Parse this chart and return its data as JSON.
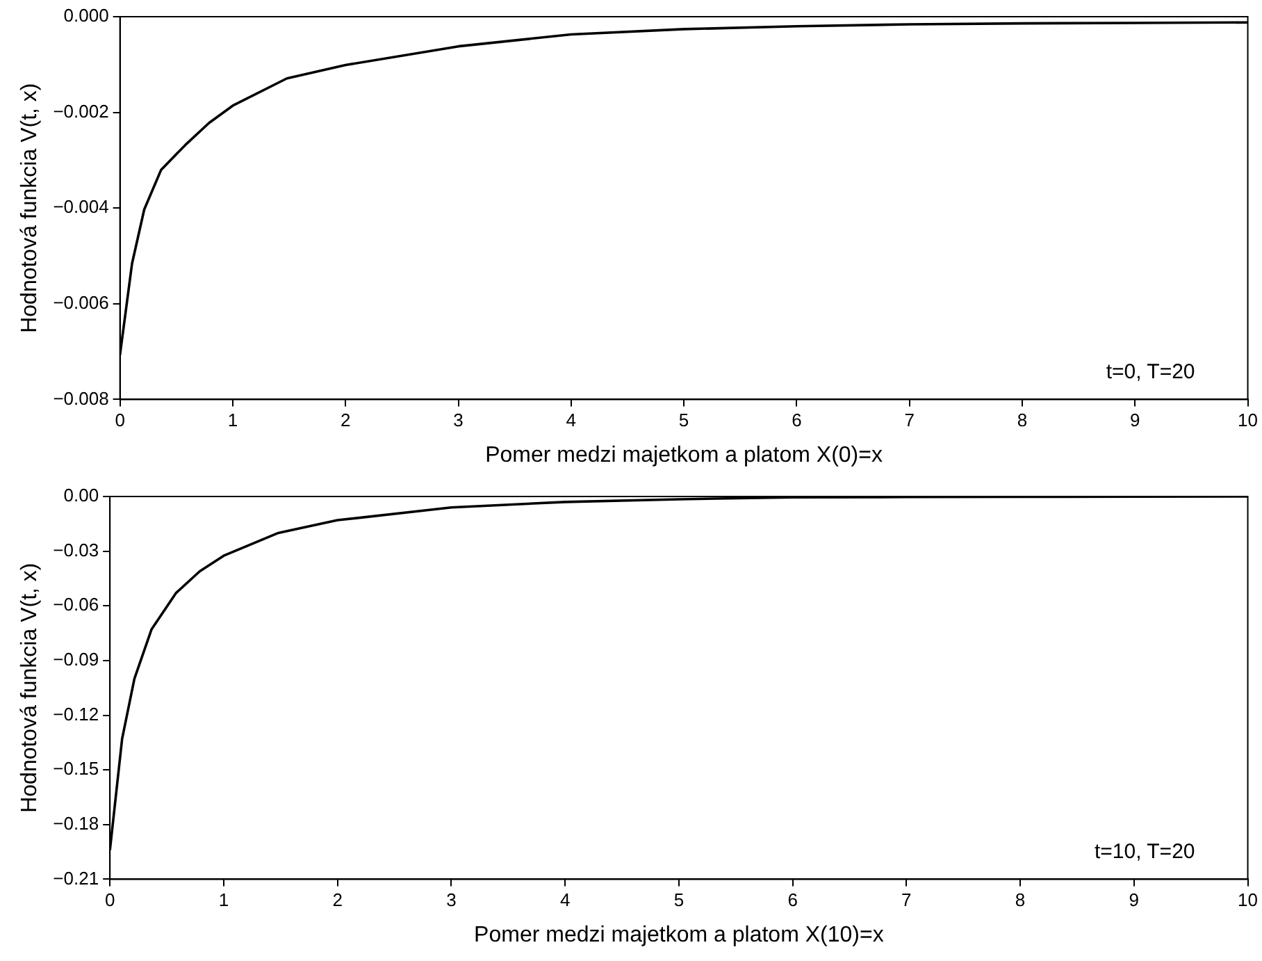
{
  "chart_data": [
    {
      "type": "line",
      "xlabel": "Pomer medzi majetkom a platom X(0)=x",
      "ylabel": "Hodnotová funkcia V(t, x)",
      "annotations": [
        "t=0, T=20"
      ],
      "marker": "none",
      "x": [
        0,
        0.107,
        0.215,
        0.365,
        0.58,
        0.79,
        1,
        1.48,
        2,
        3,
        4,
        5,
        6,
        7,
        8,
        9,
        10
      ],
      "series": [
        {
          "color": "#000000",
          "values": [
            -0.00707,
            -0.00516,
            -0.00403,
            -0.0032,
            -0.00268,
            -0.00222,
            -0.00186,
            -0.00129,
            -0.00101,
            -0.00062,
            -0.00037,
            -0.00026,
            -0.0002,
            -0.00016,
            -0.00014,
            -0.00013,
            -0.00012
          ]
        }
      ],
      "xlim": [
        0,
        10
      ],
      "xticks": [
        0,
        1,
        2,
        3,
        4,
        5,
        6,
        7,
        8,
        9,
        10
      ],
      "ylim": [
        -0.008,
        0
      ],
      "yticks": [
        {
          "value": -0.008,
          "label": "−0.008"
        },
        {
          "value": -0.006,
          "label": "−0.006"
        },
        {
          "value": -0.004,
          "label": "−0.004"
        },
        {
          "value": -0.002,
          "label": "−0.002"
        },
        {
          "value": 0,
          "label": "0.000"
        }
      ]
    },
    {
      "type": "line",
      "xlabel": "Pomer medzi majetkom a platom X(10)=x",
      "ylabel": "Hodnotová funkcia V(t, x)",
      "annotations": [
        "t=10, T=20"
      ],
      "marker": "none",
      "x": [
        0,
        0.107,
        0.215,
        0.365,
        0.58,
        0.79,
        1,
        1.48,
        2,
        3,
        4,
        5,
        6,
        7,
        8,
        9,
        10
      ],
      "series": [
        {
          "color": "#000000",
          "values": [
            -0.194,
            -0.133,
            -0.1,
            -0.073,
            -0.053,
            -0.041,
            -0.0325,
            -0.02,
            -0.013,
            -0.006,
            -0.003,
            -0.0015,
            -0.0005,
            -0.0003,
            -0.0002,
            -0.0001,
            0
          ]
        }
      ],
      "xlim": [
        0,
        10
      ],
      "xticks": [
        0,
        1,
        2,
        3,
        4,
        5,
        6,
        7,
        8,
        9,
        10
      ],
      "ylim": [
        -0.21,
        0
      ],
      "yticks": [
        {
          "value": -0.21,
          "label": "−0.21"
        },
        {
          "value": -0.18,
          "label": "−0.18"
        },
        {
          "value": -0.15,
          "label": "−0.15"
        },
        {
          "value": -0.12,
          "label": "−0.12"
        },
        {
          "value": -0.09,
          "label": "−0.09"
        },
        {
          "value": -0.06,
          "label": "−0.06"
        },
        {
          "value": -0.03,
          "label": "−0.03"
        },
        {
          "value": 0,
          "label": "0.00"
        }
      ]
    }
  ]
}
